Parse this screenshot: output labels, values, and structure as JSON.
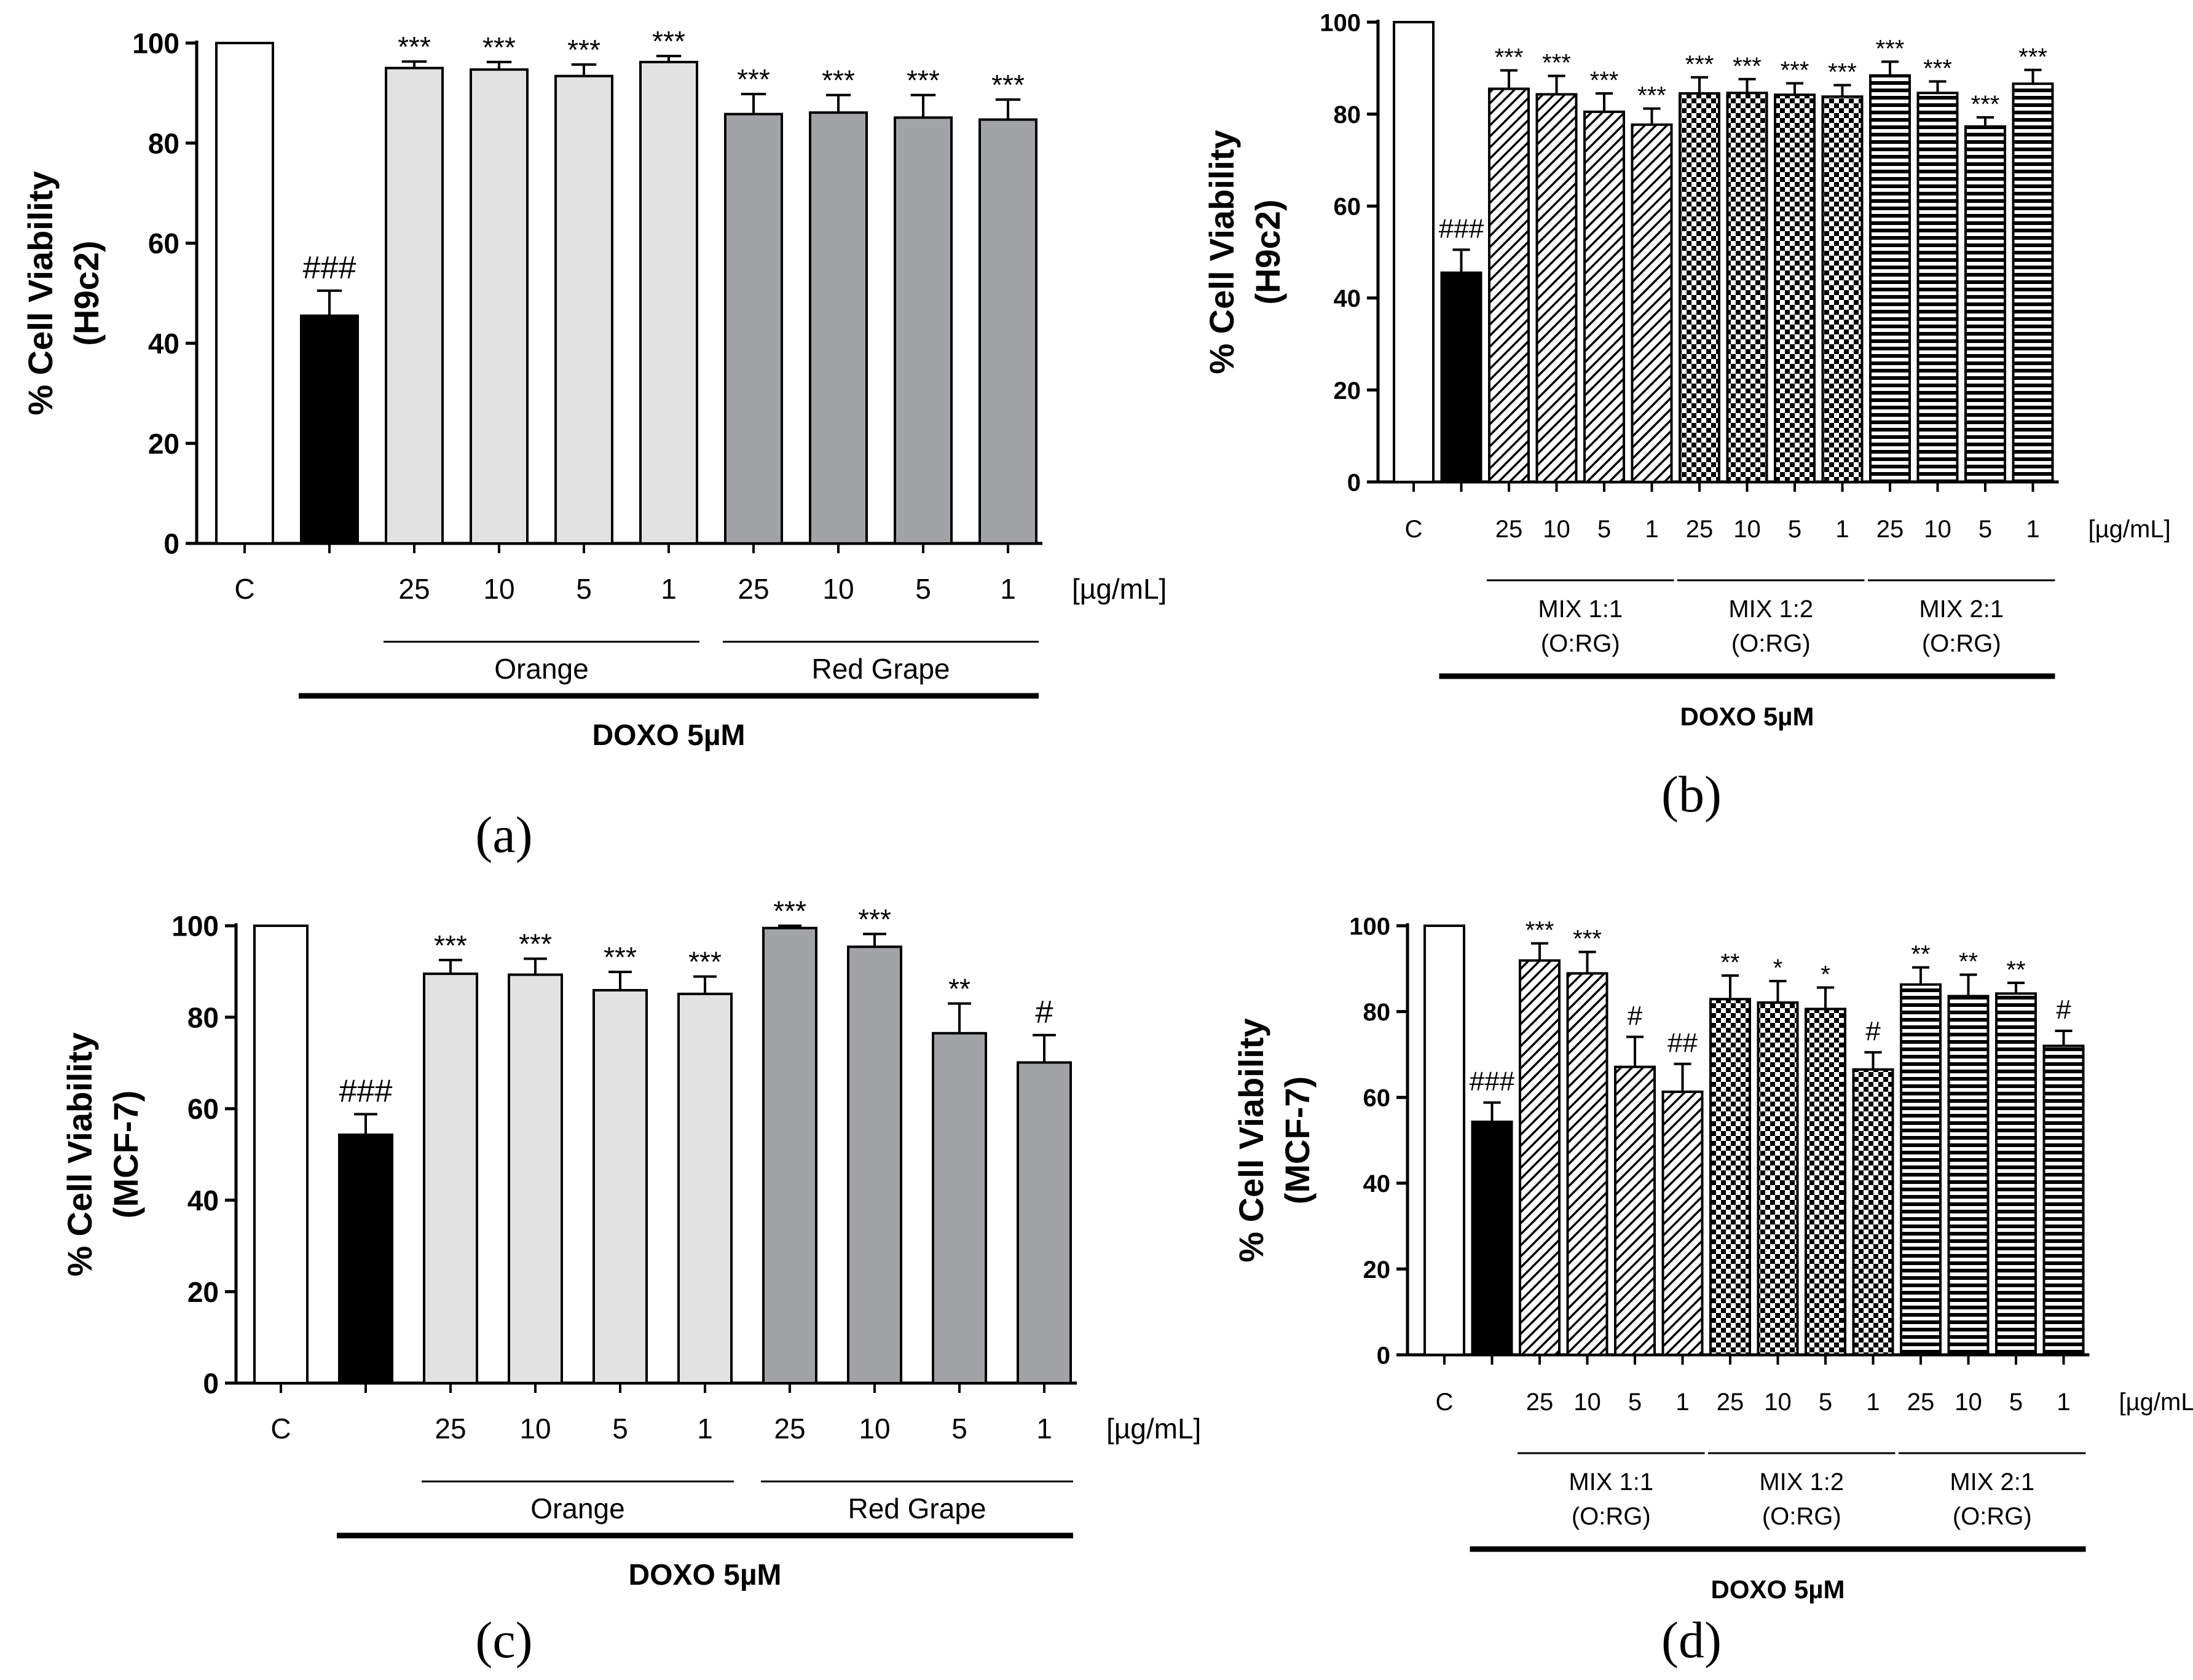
{
  "figure": {
    "panels": [
      {
        "id": "a",
        "label": "(a)"
      },
      {
        "id": "b",
        "label": "(b)"
      },
      {
        "id": "c",
        "label": "(c)"
      },
      {
        "id": "d",
        "label": "(d)"
      }
    ]
  },
  "chart_data": [
    {
      "panel": "(a)",
      "type": "bar",
      "ylabel": "% Cell Viability",
      "ylabel2": "(H9c2)",
      "ylim": [
        0,
        100
      ],
      "yticks": [
        0,
        20,
        40,
        60,
        80,
        100
      ],
      "unit_label": "[µg/mL]",
      "categories": [
        "C",
        "",
        "25",
        "10",
        "5",
        "1",
        "25",
        "10",
        "5",
        "1"
      ],
      "values": [
        100,
        45.5,
        95,
        94.7,
        93.4,
        96.2,
        85.8,
        86.1,
        85.1,
        84.7
      ],
      "errors": [
        0,
        5,
        1.3,
        1.5,
        2.3,
        1.2,
        4.0,
        3.5,
        4.5,
        4.0
      ],
      "fills": [
        "white",
        "black",
        "light",
        "light",
        "light",
        "light",
        "gray",
        "gray",
        "gray",
        "gray"
      ],
      "annotations": [
        "",
        "###",
        "***",
        "***",
        "***",
        "***",
        "***",
        "***",
        "***",
        "***"
      ],
      "groups": [
        {
          "name": "Orange",
          "from": 2,
          "to": 5
        },
        {
          "name": "Red Grape",
          "from": 6,
          "to": 9
        }
      ],
      "treatment": {
        "name": "DOXO 5µM",
        "from": 1,
        "to": 9
      }
    },
    {
      "panel": "(b)",
      "type": "bar",
      "ylabel": "% Cell Viability",
      "ylabel2": "(H9c2)",
      "ylim": [
        0,
        100
      ],
      "yticks": [
        0,
        20,
        40,
        60,
        80,
        100
      ],
      "unit_label": "[µg/mL]",
      "categories": [
        "C",
        "",
        "25",
        "10",
        "5",
        "1",
        "25",
        "10",
        "5",
        "1",
        "25",
        "10",
        "5",
        "1"
      ],
      "values": [
        100,
        45.5,
        85.5,
        84.3,
        80.5,
        77.7,
        84.5,
        84.6,
        84.2,
        83.8,
        88.4,
        84.6,
        77.3,
        86.6
      ],
      "errors": [
        0,
        5,
        4.0,
        4.0,
        4.0,
        3.5,
        3.5,
        3.0,
        2.5,
        2.5,
        3.0,
        2.5,
        2.0,
        3.0
      ],
      "fills": [
        "white",
        "black",
        "diag",
        "diag",
        "diag",
        "diag",
        "check",
        "check",
        "check",
        "check",
        "horiz",
        "horiz",
        "horiz",
        "horiz"
      ],
      "annotations": [
        "",
        "###",
        "***",
        "***",
        "***",
        "***",
        "***",
        "***",
        "***",
        "***",
        "***",
        "***",
        "***",
        "***"
      ],
      "groups": [
        {
          "name": "MIX 1:1",
          "name2": "(O:RG)",
          "from": 2,
          "to": 5
        },
        {
          "name": "MIX 1:2",
          "name2": "(O:RG)",
          "from": 6,
          "to": 9
        },
        {
          "name": "MIX 2:1",
          "name2": "(O:RG)",
          "from": 10,
          "to": 13
        }
      ],
      "treatment": {
        "name": "DOXO 5µM",
        "from": 1,
        "to": 13
      }
    },
    {
      "panel": "(c)",
      "type": "bar",
      "ylabel": "% Cell Viability",
      "ylabel2": "(MCF-7)",
      "ylim": [
        0,
        100
      ],
      "yticks": [
        0,
        20,
        40,
        60,
        80,
        100
      ],
      "unit_label": "[µg/mL]",
      "categories": [
        "C",
        "",
        "25",
        "10",
        "5",
        "1",
        "25",
        "10",
        "5",
        "1"
      ],
      "values": [
        100,
        54.3,
        89.5,
        89.3,
        85.9,
        85.1,
        99.5,
        95.4,
        76.5,
        70.1
      ],
      "errors": [
        0,
        4.5,
        3.0,
        3.5,
        4.0,
        3.8,
        0.5,
        2.8,
        6.5,
        6.0
      ],
      "fills": [
        "white",
        "black",
        "light",
        "light",
        "light",
        "light",
        "gray",
        "gray",
        "gray",
        "gray"
      ],
      "annotations": [
        "",
        "###",
        "***",
        "***",
        "***",
        "***",
        "***",
        "***",
        "**",
        "#"
      ],
      "groups": [
        {
          "name": "Orange",
          "from": 2,
          "to": 5
        },
        {
          "name": "Red Grape",
          "from": 6,
          "to": 9
        }
      ],
      "treatment": {
        "name": "DOXO 5µM",
        "from": 1,
        "to": 9
      }
    },
    {
      "panel": "(d)",
      "type": "bar",
      "ylabel": "% Cell Viability",
      "ylabel2": "(MCF-7)",
      "ylim": [
        0,
        100
      ],
      "yticks": [
        0,
        20,
        40,
        60,
        80,
        100
      ],
      "unit_label": "[µg/mL]",
      "categories": [
        "C",
        "",
        "25",
        "10",
        "5",
        "1",
        "25",
        "10",
        "5",
        "1",
        "25",
        "10",
        "5",
        "1"
      ],
      "values": [
        100,
        54.3,
        91.9,
        88.9,
        67.1,
        61.3,
        82.9,
        82.1,
        80.6,
        66.5,
        86.3,
        83.6,
        84.2,
        72.0
      ],
      "errors": [
        0,
        4.5,
        4.0,
        5.0,
        7.0,
        6.5,
        5.5,
        5.0,
        5.0,
        4.0,
        4.0,
        5.0,
        2.5,
        3.5
      ],
      "fills": [
        "white",
        "black",
        "diag",
        "diag",
        "diag",
        "diag",
        "check",
        "check",
        "check",
        "check",
        "horiz",
        "horiz",
        "horiz",
        "horiz"
      ],
      "annotations": [
        "",
        "###",
        "***",
        "***",
        "#",
        "##",
        "**",
        "*",
        "*",
        "#",
        "**",
        "**",
        "**",
        "#"
      ],
      "groups": [
        {
          "name": "MIX 1:1",
          "name2": "(O:RG)",
          "from": 2,
          "to": 5
        },
        {
          "name": "MIX 1:2",
          "name2": "(O:RG)",
          "from": 6,
          "to": 9
        },
        {
          "name": "MIX 2:1",
          "name2": "(O:RG)",
          "from": 10,
          "to": 13
        }
      ],
      "treatment": {
        "name": "DOXO 5µM",
        "from": 1,
        "to": 13
      }
    }
  ],
  "colors": {
    "light": "#e2e2e2",
    "gray": "#a2a3a6",
    "ink": "#000000"
  }
}
